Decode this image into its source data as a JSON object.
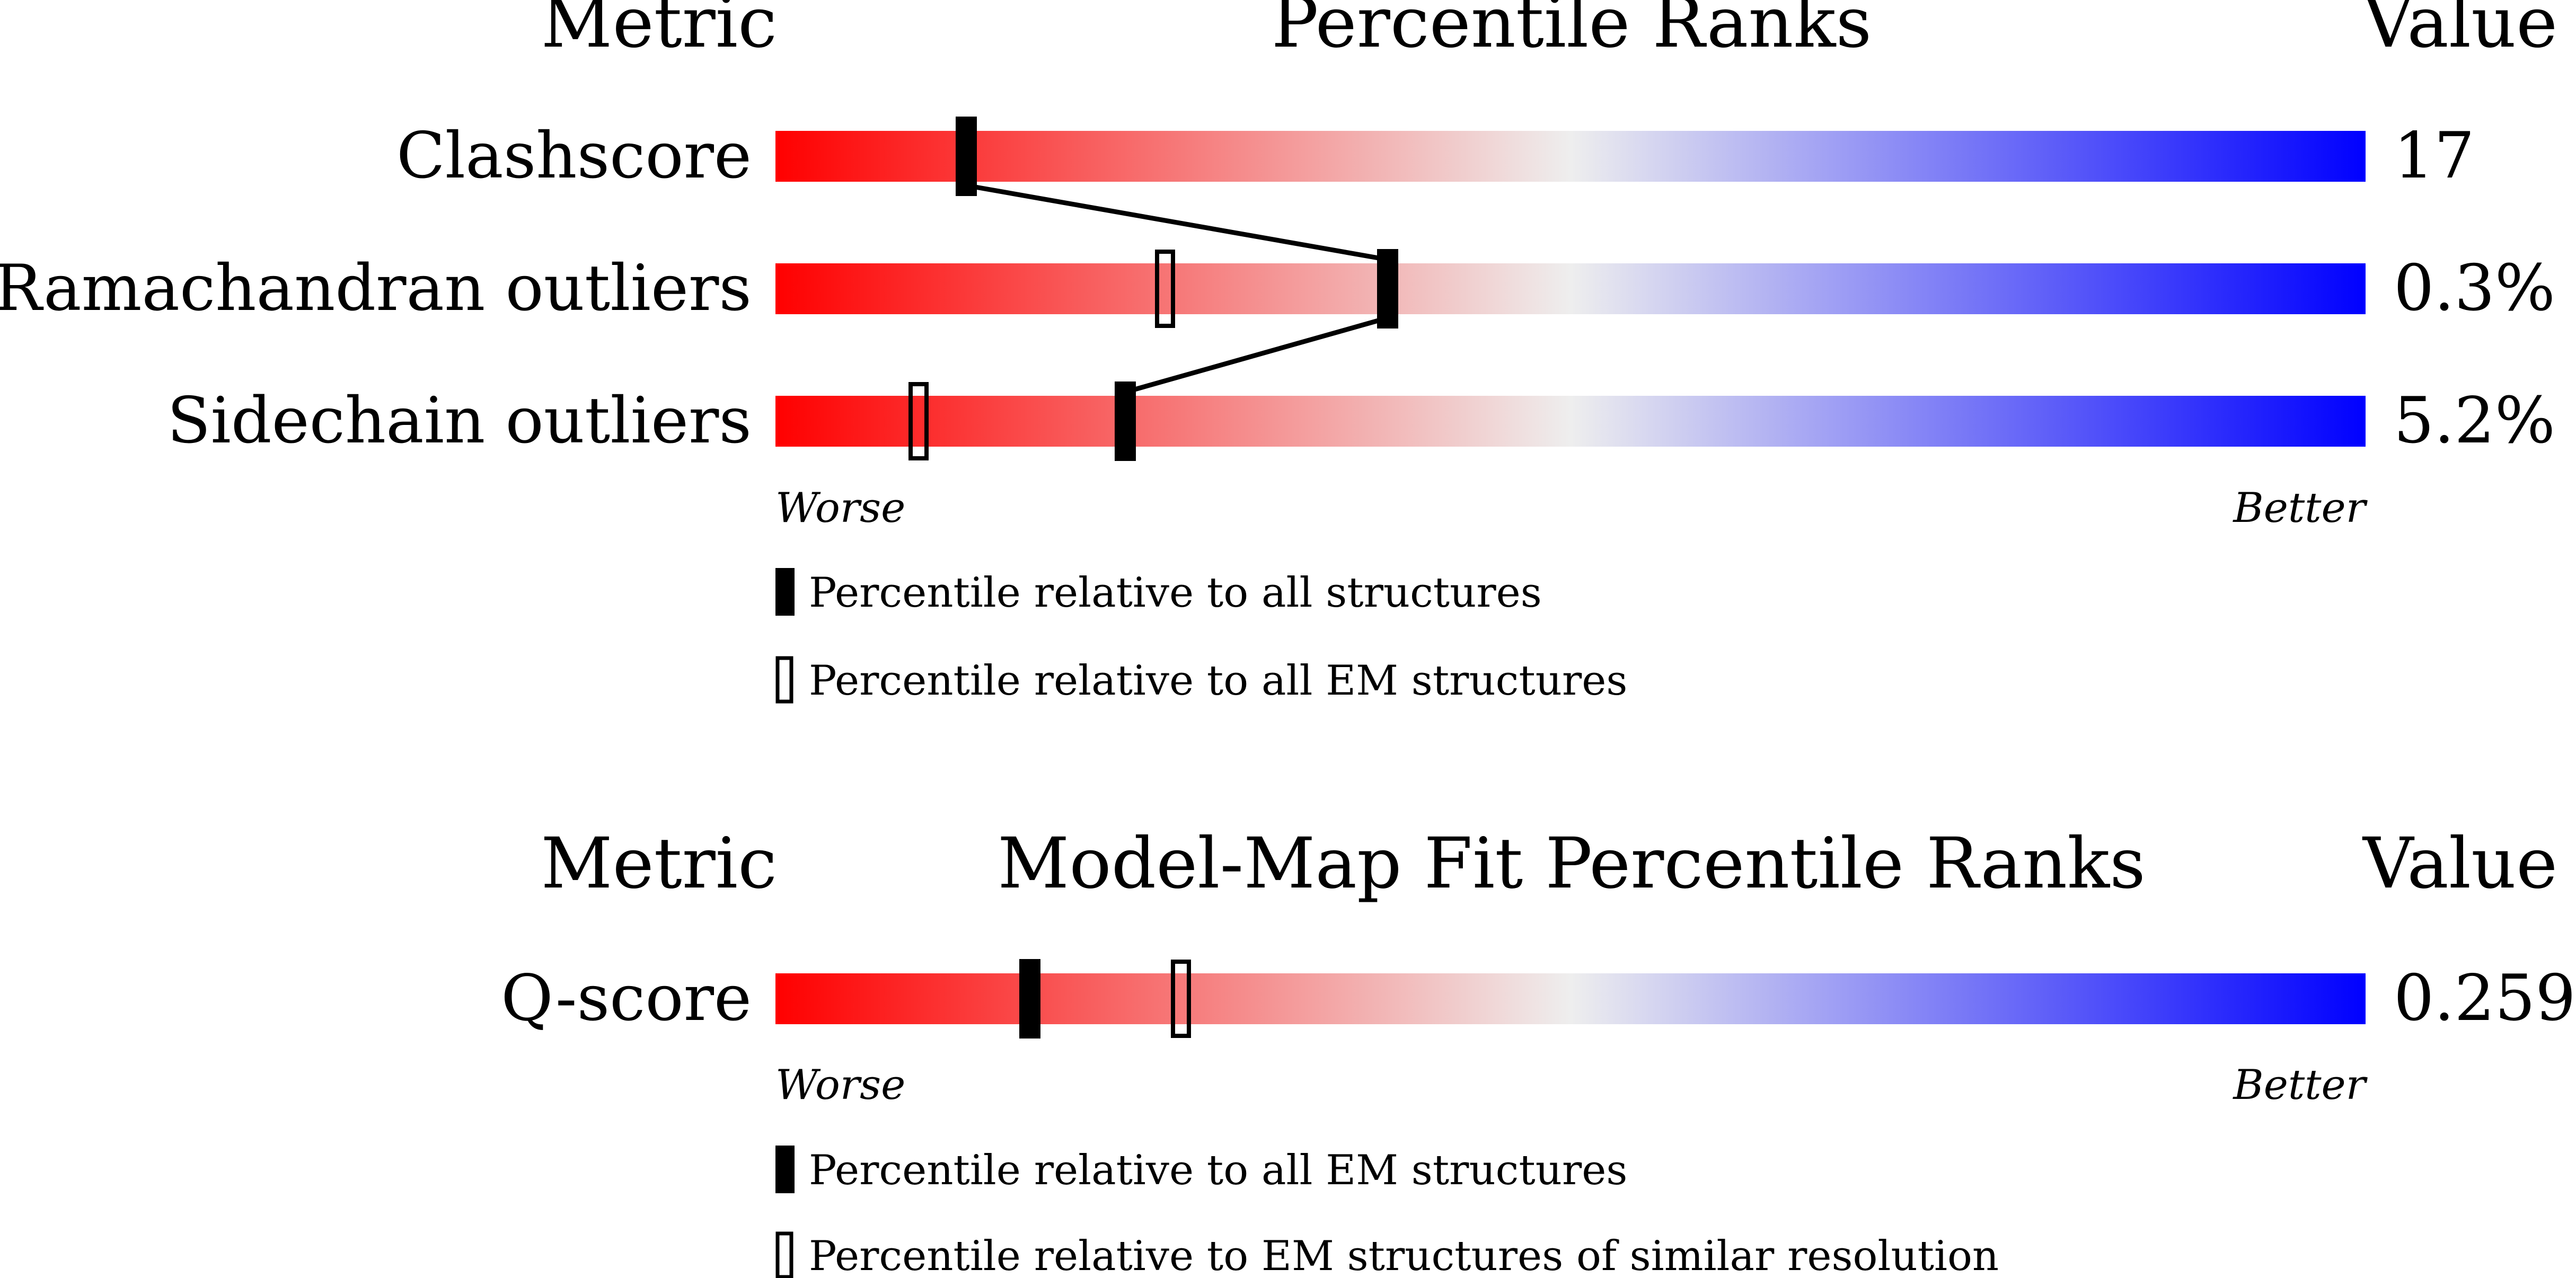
{
  "colors": {
    "worse": "#ff0000",
    "mid": "#eeeeee",
    "better": "#0000ff",
    "marker": "#000000",
    "background": "#ffffff"
  },
  "legend_labels": {
    "worse": "Worse",
    "better": "Better"
  },
  "chart_data": [
    {
      "type": "percentile-ranks",
      "headers": {
        "metric": "Metric",
        "title": "Percentile Ranks",
        "value": "Value"
      },
      "x_range": [
        0,
        100
      ],
      "rows": [
        {
          "metric": "Clashscore",
          "value": "17",
          "percentile_all": 12,
          "percentile_em": null
        },
        {
          "metric": "Ramachandran outliers",
          "value": "0.3%",
          "percentile_all": 38.5,
          "percentile_em": 24.5
        },
        {
          "metric": "Sidechain outliers",
          "value": "5.2%",
          "percentile_all": 22,
          "percentile_em": 9
        }
      ],
      "connect_all_markers": true,
      "legend": [
        {
          "marker": "filled",
          "label": "Percentile relative to all structures"
        },
        {
          "marker": "open",
          "label": "Percentile relative to all EM structures"
        }
      ]
    },
    {
      "type": "percentile-ranks",
      "headers": {
        "metric": "Metric",
        "title": "Model-Map Fit Percentile Ranks",
        "value": "Value"
      },
      "x_range": [
        0,
        100
      ],
      "rows": [
        {
          "metric": "Q-score",
          "value": "0.259",
          "percentile_all": 16,
          "percentile_em": 25.5
        }
      ],
      "connect_all_markers": false,
      "legend": [
        {
          "marker": "filled",
          "label": "Percentile relative to all EM structures"
        },
        {
          "marker": "open",
          "label": "Percentile relative to EM structures of similar resolution"
        }
      ]
    }
  ]
}
